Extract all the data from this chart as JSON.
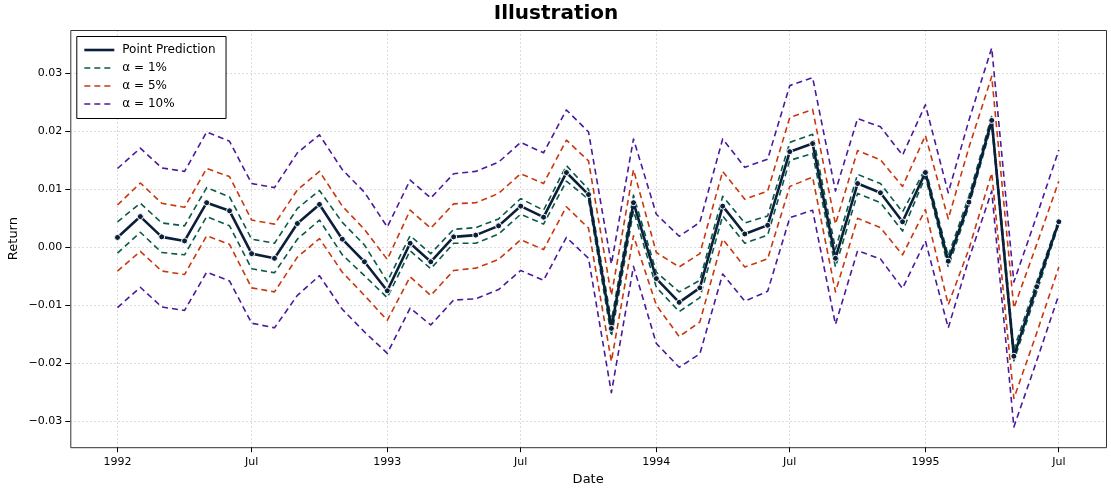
{
  "chart_data": {
    "type": "line",
    "title": "Illustration",
    "xlabel": "Date",
    "ylabel": "Return",
    "x": [
      "1992-01",
      "1992-02",
      "1992-03",
      "1992-04",
      "1992-05",
      "1992-06",
      "1992-07",
      "1992-08",
      "1992-09",
      "1992-10",
      "1992-11",
      "1992-12",
      "1993-01",
      "1993-02",
      "1993-03",
      "1993-04",
      "1993-05",
      "1993-06",
      "1993-07",
      "1993-08",
      "1993-09",
      "1993-10",
      "1993-11",
      "1993-12",
      "1994-01",
      "1994-02",
      "1994-03",
      "1994-04",
      "1994-05",
      "1994-06",
      "1994-07",
      "1994-08",
      "1994-09",
      "1994-10",
      "1994-11",
      "1994-12",
      "1995-01",
      "1995-02",
      "1995-03",
      "1995-04",
      "1995-05",
      "1995-06",
      "1995-07"
    ],
    "xlim": [
      "1991-10-29",
      "1995-09-03"
    ],
    "xticks": [
      {
        "value": "1992-01",
        "label": "1992"
      },
      {
        "value": "1992-07",
        "label": "Jul"
      },
      {
        "value": "1993-01",
        "label": "1993"
      },
      {
        "value": "1993-07",
        "label": "Jul"
      },
      {
        "value": "1994-01",
        "label": "1994"
      },
      {
        "value": "1994-07",
        "label": "Jul"
      },
      {
        "value": "1995-01",
        "label": "1995"
      },
      {
        "value": "1995-07",
        "label": "Jul"
      }
    ],
    "ylim": [
      -0.0345,
      0.0375
    ],
    "yticks": [
      {
        "value": -0.03,
        "label": "−0.03"
      },
      {
        "value": -0.02,
        "label": "−0.02"
      },
      {
        "value": -0.01,
        "label": "−0.01"
      },
      {
        "value": 0,
        "label": "0.00"
      },
      {
        "value": 0.01,
        "label": "0.01"
      },
      {
        "value": 0.02,
        "label": "0.02"
      },
      {
        "value": 0.03,
        "label": "0.03"
      }
    ],
    "grid": true,
    "legend": "top left",
    "marker": "none",
    "line_style": "dashed",
    "series": [
      {
        "name": "Point Prediction",
        "color": "#0b1f3a",
        "line_style": "solid",
        "marker": "circle",
        "values": [
          0.0017,
          0.0053,
          0.0018,
          0.0011,
          0.0077,
          0.0063,
          -0.0011,
          -0.0019,
          0.0041,
          0.0074,
          0.0014,
          -0.0025,
          -0.0075,
          0.0007,
          -0.0025,
          0.0018,
          0.0021,
          0.0037,
          0.0071,
          0.0052,
          0.0129,
          0.0091,
          -0.014,
          0.0077,
          -0.0054,
          -0.0095,
          -0.007,
          0.0071,
          0.0023,
          0.0038,
          0.0165,
          0.0179,
          -0.0019,
          0.011,
          0.0094,
          0.0044,
          0.0129,
          -0.0024,
          0.0078,
          0.0219,
          -0.0188,
          -0.0068,
          0.0044
        ]
      },
      {
        "name": "α = 1%",
        "color": "#0a5a48",
        "values": [
          0.0044,
          0.0076,
          0.0042,
          0.0037,
          0.0103,
          0.0087,
          0.0014,
          0.0007,
          0.0067,
          0.0098,
          0.0043,
          0.0004,
          -0.0059,
          0.002,
          -0.0011,
          0.0031,
          0.0034,
          0.0049,
          0.0084,
          0.0064,
          0.0141,
          0.01,
          -0.0127,
          0.009,
          -0.0043,
          -0.0077,
          -0.0057,
          0.0088,
          0.0042,
          0.0054,
          0.0181,
          0.0195,
          -0.0003,
          0.0126,
          0.011,
          0.0061,
          0.0136,
          -0.0015,
          0.0088,
          0.0227,
          -0.0176,
          -0.006,
          0.0048
        ]
      },
      {
        "color": "#0a5a48",
        "values": [
          -0.001,
          0.0026,
          -0.0009,
          -0.0013,
          0.0053,
          0.0037,
          -0.0037,
          -0.0044,
          0.0014,
          0.0047,
          -0.0013,
          -0.0049,
          -0.0087,
          -0.0006,
          -0.0037,
          0.0007,
          0.0007,
          0.0023,
          0.0057,
          0.004,
          0.0114,
          0.0083,
          -0.0154,
          0.0063,
          -0.0069,
          -0.0111,
          -0.0087,
          0.0054,
          0.0007,
          0.0021,
          0.015,
          0.0162,
          -0.0034,
          0.0093,
          0.0077,
          0.0028,
          0.0122,
          -0.0034,
          0.0071,
          0.0212,
          -0.0196,
          -0.0077,
          0.004
        ]
      },
      {
        "name": "α = 5%",
        "color": "#c8380f",
        "values": [
          0.0073,
          0.0111,
          0.0076,
          0.0069,
          0.0136,
          0.0122,
          0.0047,
          0.004,
          0.0099,
          0.0131,
          0.0071,
          0.0031,
          -0.0021,
          0.0064,
          0.0033,
          0.0075,
          0.0077,
          0.0093,
          0.0127,
          0.011,
          0.0185,
          0.0149,
          -0.0083,
          0.0134,
          -0.0009,
          -0.0034,
          -0.0011,
          0.0131,
          0.0083,
          0.0097,
          0.0224,
          0.0238,
          0.004,
          0.0167,
          0.0151,
          0.0105,
          0.0193,
          0.0049,
          0.0172,
          0.0295,
          -0.0105,
          0.0005,
          0.0114
        ]
      },
      {
        "color": "#c8380f",
        "values": [
          -0.0041,
          -0.0007,
          -0.0041,
          -0.0047,
          0.002,
          0.0005,
          -0.007,
          -0.0077,
          -0.0017,
          0.0015,
          -0.0043,
          -0.0083,
          -0.0126,
          -0.0051,
          -0.0083,
          -0.004,
          -0.0036,
          -0.0021,
          0.0013,
          -0.0004,
          0.007,
          0.0033,
          -0.0197,
          0.002,
          -0.01,
          -0.0154,
          -0.0129,
          0.0014,
          -0.0034,
          -0.002,
          0.0105,
          0.0121,
          -0.0077,
          0.005,
          0.0034,
          -0.0013,
          0.0065,
          -0.0099,
          -0.0003,
          0.0128,
          -0.0261,
          -0.0148,
          -0.0034
        ]
      },
      {
        "name": "α = 10%",
        "color": "#4b1a9b",
        "values": [
          0.0136,
          0.0171,
          0.0137,
          0.0131,
          0.0199,
          0.0183,
          0.011,
          0.0103,
          0.0163,
          0.0194,
          0.0134,
          0.0095,
          0.0035,
          0.0116,
          0.0085,
          0.0127,
          0.0131,
          0.0147,
          0.0181,
          0.0163,
          0.0237,
          0.0199,
          -0.0029,
          0.0187,
          0.0057,
          0.0019,
          0.0043,
          0.0187,
          0.0138,
          0.0152,
          0.0279,
          0.0293,
          0.0097,
          0.0222,
          0.0208,
          0.0159,
          0.0246,
          0.0094,
          0.0219,
          0.0344,
          -0.006,
          0.0054,
          0.0168
        ]
      },
      {
        "color": "#4b1a9b",
        "values": [
          -0.0104,
          -0.0069,
          -0.0103,
          -0.0109,
          -0.0043,
          -0.0058,
          -0.0131,
          -0.0139,
          -0.0083,
          -0.0049,
          -0.0107,
          -0.0146,
          -0.0183,
          -0.0105,
          -0.0134,
          -0.0091,
          -0.0089,
          -0.0073,
          -0.004,
          -0.0057,
          0.0017,
          -0.0019,
          -0.0251,
          -0.0033,
          -0.0166,
          -0.0207,
          -0.0184,
          -0.0046,
          -0.0093,
          -0.0076,
          0.0051,
          0.0064,
          -0.0133,
          -0.0006,
          -0.002,
          -0.0071,
          0.0011,
          -0.0139,
          -0.002,
          0.0097,
          -0.031,
          -0.0196,
          -0.0082
        ]
      }
    ]
  }
}
